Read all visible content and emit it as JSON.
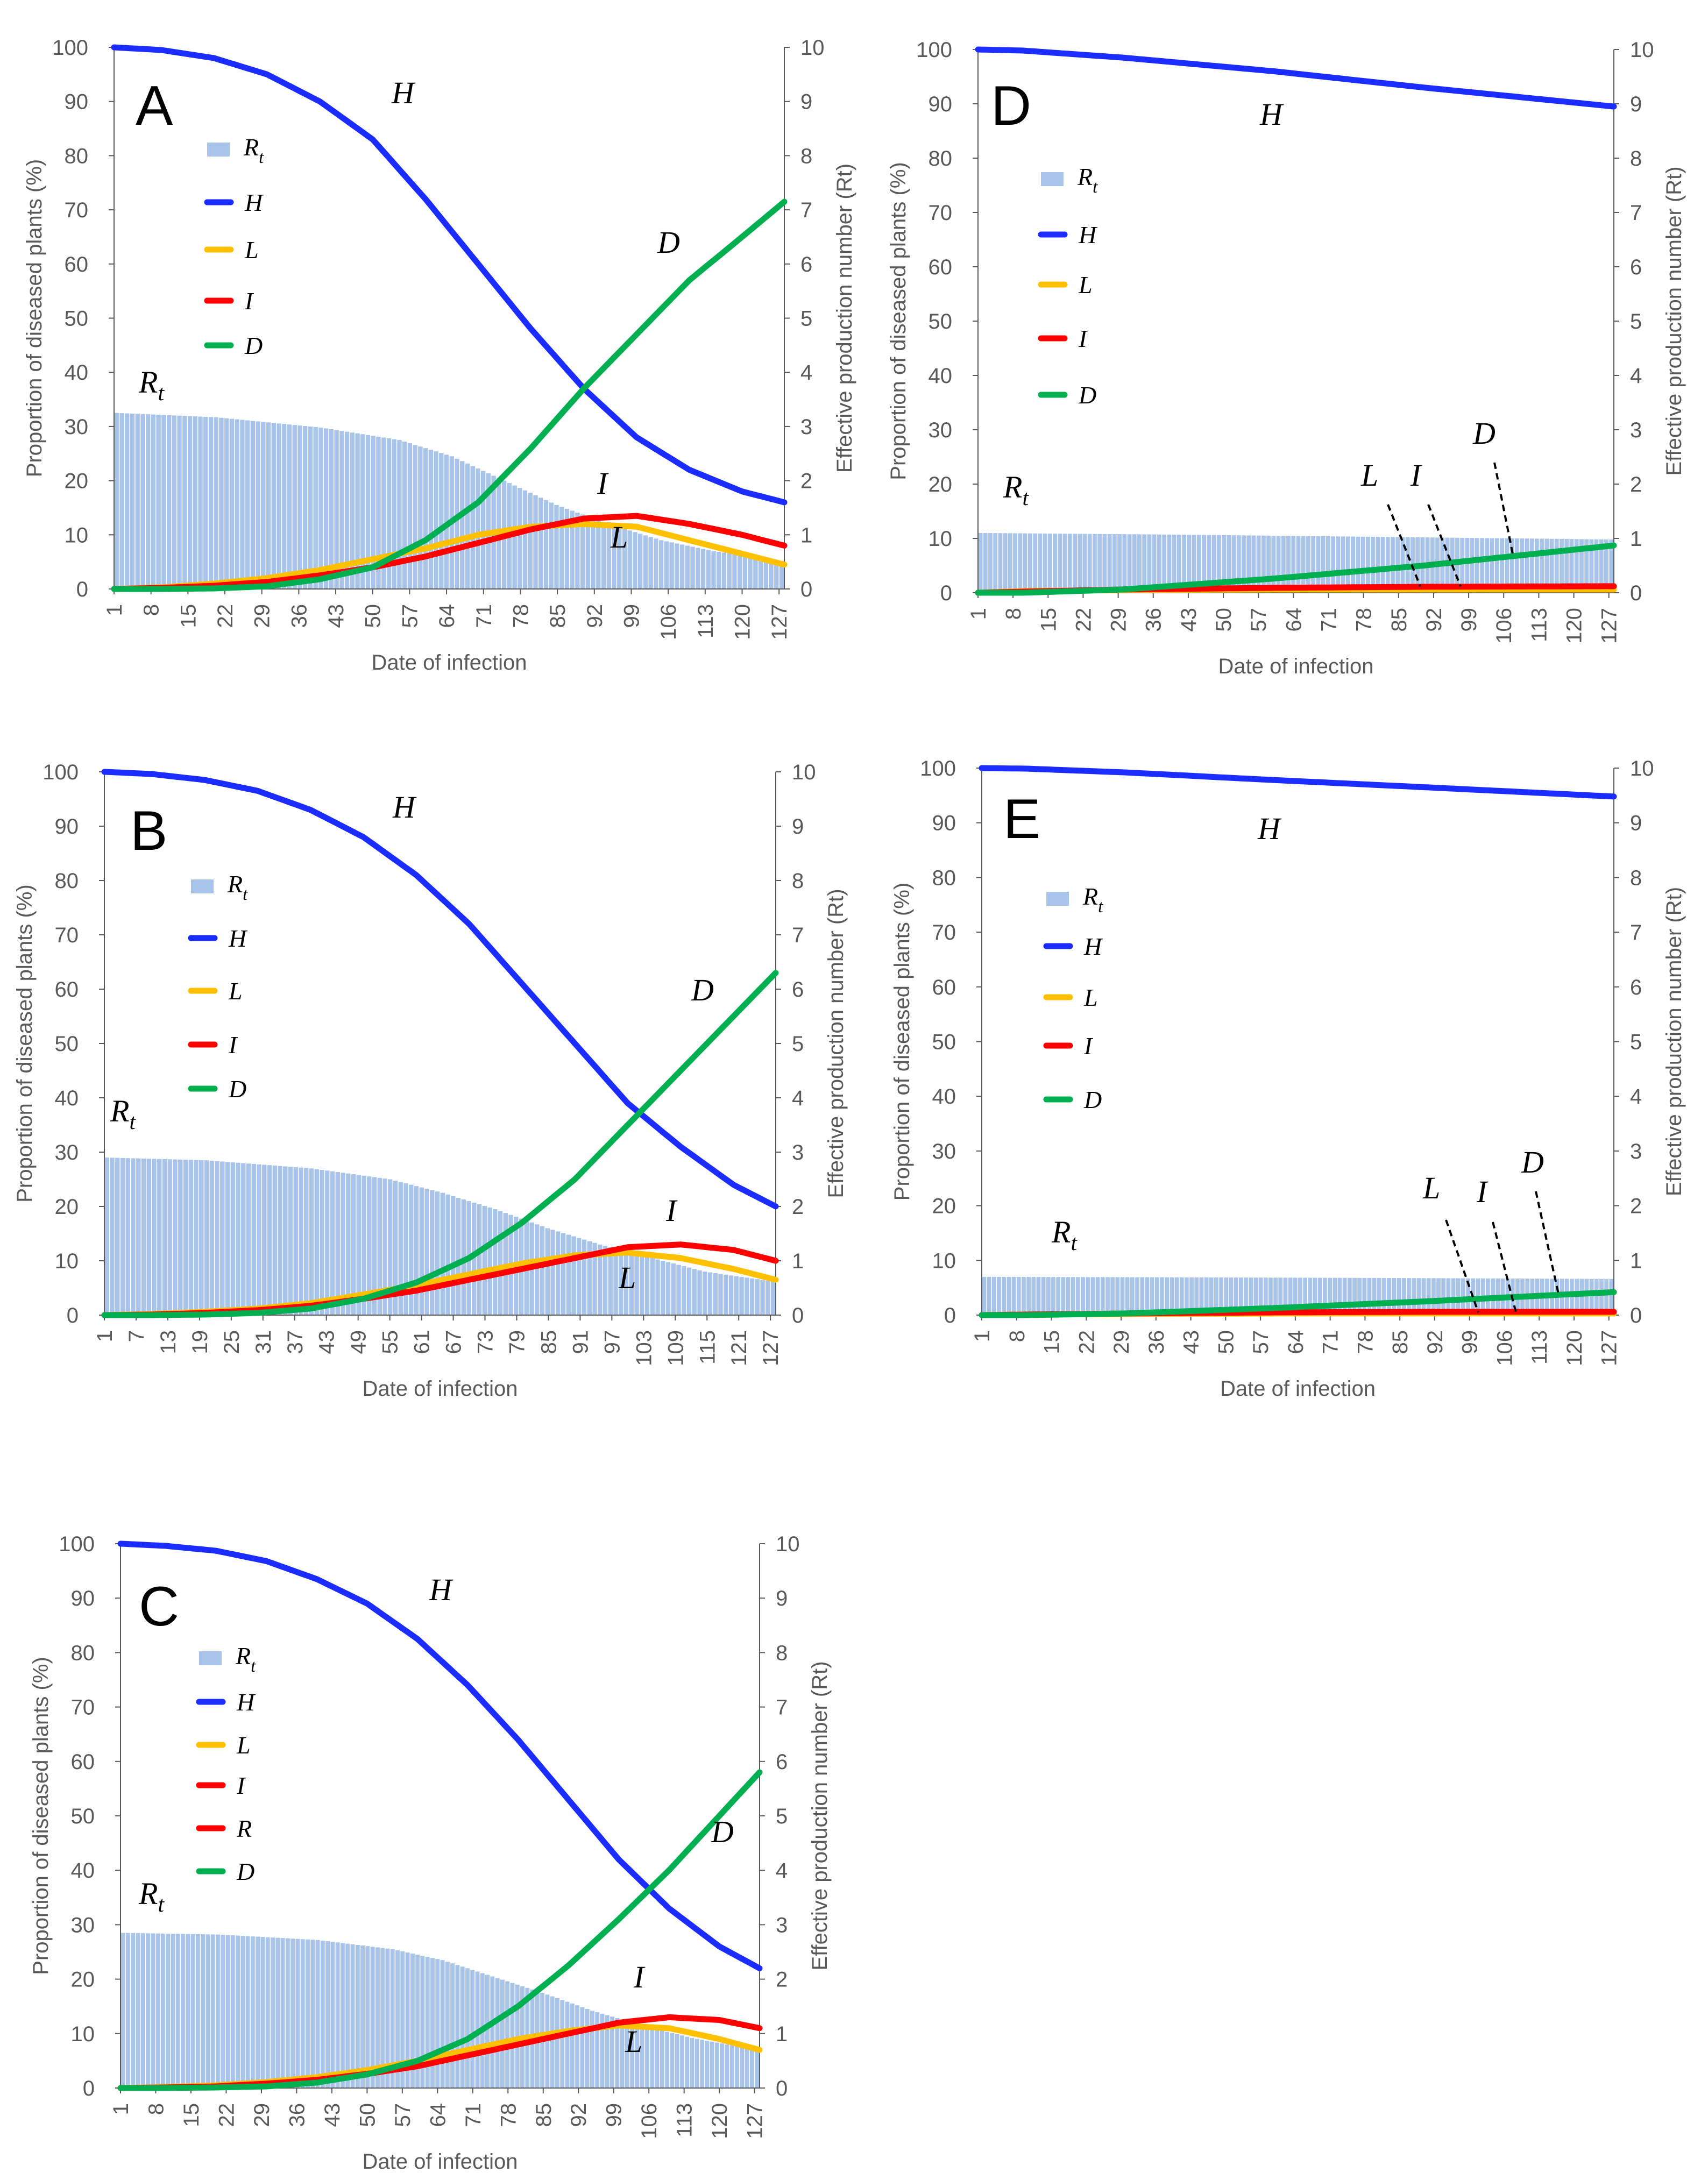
{
  "colors": {
    "H": "#1a2cff",
    "L": "#ffc000",
    "I": "#ff0000",
    "R": "#ff0000",
    "D": "#00b050",
    "Rt": "#a9c4ea",
    "axis": "#595959"
  },
  "chart_data": [
    {
      "panel": "A",
      "type": "line",
      "xlabel": "Date of infection",
      "ylabel": "Proportion of diseased plants (%)",
      "y2label": "Effective production number (Rt)",
      "ylim": [
        0,
        100
      ],
      "y2lim": [
        0,
        10
      ],
      "yticks": [
        0,
        10,
        20,
        30,
        40,
        50,
        60,
        70,
        80,
        90,
        100
      ],
      "y2ticks": [
        0,
        1,
        2,
        3,
        4,
        5,
        6,
        7,
        8,
        9,
        10
      ],
      "xlim": [
        1,
        128
      ],
      "xticks": [
        "1",
        "8",
        "15",
        "22",
        "29",
        "36",
        "43",
        "50",
        "57",
        "64",
        "71",
        "78",
        "85",
        "92",
        "99",
        "106",
        "113",
        "120",
        "127"
      ],
      "legend": [
        {
          "key": "Rt",
          "label": "R",
          "sub": "t"
        },
        {
          "key": "H",
          "label": "H"
        },
        {
          "key": "L",
          "label": "L"
        },
        {
          "key": "I",
          "label": "I"
        },
        {
          "key": "D",
          "label": "D"
        }
      ],
      "annotations": [
        {
          "text": "R",
          "sub": "t"
        },
        {
          "text": "H"
        },
        {
          "text": "D"
        },
        {
          "text": "I"
        },
        {
          "text": "L"
        }
      ],
      "rt_series": {
        "x": [
          1,
          20,
          40,
          55,
          65,
          75,
          85,
          95,
          105,
          115,
          128
        ],
        "y": [
          3.25,
          3.17,
          2.98,
          2.75,
          2.45,
          2.0,
          1.55,
          1.2,
          0.9,
          0.7,
          0.52
        ]
      },
      "series": [
        {
          "name": "H",
          "x": [
            1,
            10,
            20,
            30,
            40,
            50,
            60,
            70,
            80,
            90,
            100,
            110,
            120,
            128
          ],
          "y": [
            100,
            99.5,
            98,
            95,
            90,
            83,
            72,
            60,
            48,
            37,
            28,
            22,
            18,
            16
          ]
        },
        {
          "name": "L",
          "x": [
            1,
            10,
            20,
            30,
            40,
            50,
            60,
            70,
            80,
            90,
            100,
            110,
            120,
            128
          ],
          "y": [
            0,
            0.3,
            1,
            2,
            3.5,
            5.5,
            7.5,
            10,
            11.5,
            12,
            11.5,
            9,
            6.5,
            4.5
          ]
        },
        {
          "name": "I",
          "x": [
            1,
            10,
            20,
            30,
            40,
            50,
            60,
            70,
            80,
            90,
            100,
            110,
            120,
            128
          ],
          "y": [
            0,
            0.2,
            0.6,
            1.3,
            2.5,
            4,
            6,
            8.5,
            11,
            13,
            13.5,
            12,
            10,
            8
          ]
        },
        {
          "name": "D",
          "x": [
            1,
            10,
            20,
            30,
            40,
            50,
            60,
            70,
            80,
            90,
            100,
            110,
            120,
            128
          ],
          "y": [
            0,
            0,
            0.1,
            0.5,
            1.8,
            4,
            9,
            16,
            26,
            37,
            47,
            57,
            65,
            71.5
          ]
        }
      ]
    },
    {
      "panel": "B",
      "type": "line",
      "xlabel": "Date of infection",
      "ylabel": "Proportion of diseased plants (%)",
      "y2label": "Effective production number (Rt)",
      "ylim": [
        0,
        100
      ],
      "y2lim": [
        0,
        10
      ],
      "yticks": [
        0,
        10,
        20,
        30,
        40,
        50,
        60,
        70,
        80,
        90,
        100
      ],
      "y2ticks": [
        0,
        1,
        2,
        3,
        4,
        5,
        6,
        7,
        8,
        9,
        10
      ],
      "xlim": [
        1,
        128
      ],
      "xticks": [
        "1",
        "7",
        "13",
        "19",
        "25",
        "31",
        "37",
        "43",
        "49",
        "55",
        "61",
        "67",
        "73",
        "79",
        "85",
        "91",
        "97",
        "103",
        "109",
        "115",
        "121",
        "127"
      ],
      "legend": [
        {
          "key": "Rt",
          "label": "R",
          "sub": "t"
        },
        {
          "key": "H",
          "label": "H"
        },
        {
          "key": "L",
          "label": "L"
        },
        {
          "key": "I",
          "label": "I"
        },
        {
          "key": "D",
          "label": "D"
        }
      ],
      "annotations": [
        {
          "text": "R",
          "sub": "t"
        },
        {
          "text": "H"
        },
        {
          "text": "D"
        },
        {
          "text": "I"
        },
        {
          "text": "L"
        }
      ],
      "rt_series": {
        "x": [
          1,
          20,
          40,
          55,
          65,
          75,
          85,
          95,
          105,
          115,
          128
        ],
        "y": [
          2.9,
          2.85,
          2.7,
          2.5,
          2.25,
          1.95,
          1.6,
          1.3,
          1.05,
          0.8,
          0.62
        ]
      },
      "series": [
        {
          "name": "H",
          "x": [
            1,
            10,
            20,
            30,
            40,
            50,
            60,
            70,
            80,
            90,
            100,
            110,
            120,
            128
          ],
          "y": [
            100,
            99.6,
            98.5,
            96.5,
            93,
            88,
            81,
            72,
            61,
            50,
            39,
            31,
            24,
            20
          ]
        },
        {
          "name": "L",
          "x": [
            1,
            10,
            20,
            30,
            40,
            50,
            60,
            70,
            80,
            90,
            100,
            110,
            120,
            128
          ],
          "y": [
            0,
            0.2,
            0.6,
            1.2,
            2.2,
            3.8,
            5.5,
            7.5,
            9.5,
            11,
            11.5,
            10.5,
            8.5,
            6.5
          ]
        },
        {
          "name": "I",
          "x": [
            1,
            10,
            20,
            30,
            40,
            50,
            60,
            70,
            80,
            90,
            100,
            110,
            120,
            128
          ],
          "y": [
            0,
            0.1,
            0.4,
            0.9,
            1.7,
            3,
            4.5,
            6.5,
            8.5,
            10.5,
            12.5,
            13,
            12,
            10
          ]
        },
        {
          "name": "D",
          "x": [
            1,
            10,
            20,
            30,
            40,
            50,
            60,
            70,
            80,
            90,
            100,
            110,
            120,
            128
          ],
          "y": [
            0,
            0,
            0.1,
            0.4,
            1.2,
            3,
            6,
            10.5,
            17,
            25,
            35,
            45,
            55,
            63
          ]
        }
      ]
    },
    {
      "panel": "C",
      "type": "line",
      "xlabel": "Date of infection",
      "ylabel": "Proportion of diseased plants (%)",
      "y2label": "Effective production number (Rt)",
      "ylim": [
        0,
        100
      ],
      "y2lim": [
        0,
        10
      ],
      "yticks": [
        0,
        10,
        20,
        30,
        40,
        50,
        60,
        70,
        80,
        90,
        100
      ],
      "y2ticks": [
        0,
        1,
        2,
        3,
        4,
        5,
        6,
        7,
        8,
        9,
        10
      ],
      "xlim": [
        1,
        128
      ],
      "xticks": [
        "1",
        "8",
        "15",
        "22",
        "29",
        "36",
        "43",
        "50",
        "57",
        "64",
        "71",
        "78",
        "85",
        "92",
        "99",
        "106",
        "113",
        "120",
        "127"
      ],
      "legend": [
        {
          "key": "Rt",
          "label": "R",
          "sub": "t"
        },
        {
          "key": "H",
          "label": "H"
        },
        {
          "key": "L",
          "label": "L"
        },
        {
          "key": "I",
          "label": "I"
        },
        {
          "key": "R",
          "label": "R"
        },
        {
          "key": "D",
          "label": "D"
        }
      ],
      "annotations": [
        {
          "text": "R",
          "sub": "t"
        },
        {
          "text": "H"
        },
        {
          "text": "D"
        },
        {
          "text": "I"
        },
        {
          "text": "L"
        }
      ],
      "rt_series": {
        "x": [
          1,
          20,
          40,
          55,
          65,
          75,
          85,
          95,
          105,
          115,
          128
        ],
        "y": [
          2.85,
          2.82,
          2.72,
          2.55,
          2.35,
          2.05,
          1.75,
          1.42,
          1.15,
          0.92,
          0.7
        ]
      },
      "series": [
        {
          "name": "H",
          "x": [
            1,
            10,
            20,
            30,
            40,
            50,
            60,
            70,
            80,
            90,
            100,
            110,
            120,
            128
          ],
          "y": [
            100,
            99.6,
            98.7,
            96.8,
            93.5,
            89,
            82.5,
            74,
            64,
            53,
            42,
            33,
            26,
            22
          ]
        },
        {
          "name": "L",
          "x": [
            1,
            10,
            20,
            30,
            40,
            50,
            60,
            70,
            80,
            90,
            100,
            110,
            120,
            128
          ],
          "y": [
            0,
            0.2,
            0.5,
            1.1,
            2,
            3.3,
            5,
            7,
            9,
            10.5,
            11.5,
            11,
            9,
            7
          ]
        },
        {
          "name": "I",
          "x": [
            1,
            10,
            20,
            30,
            40,
            50,
            60,
            70,
            80,
            90,
            100,
            110,
            120,
            128
          ],
          "y": [
            0,
            0.1,
            0.3,
            0.8,
            1.5,
            2.6,
            4,
            6,
            8,
            10,
            12,
            13,
            12.5,
            11
          ]
        },
        {
          "name": "D",
          "x": [
            1,
            10,
            20,
            30,
            40,
            50,
            60,
            70,
            80,
            90,
            100,
            110,
            120,
            128
          ],
          "y": [
            0,
            0,
            0.1,
            0.3,
            1,
            2.5,
            5,
            9,
            15,
            22.5,
            31,
            40,
            50,
            58
          ]
        }
      ]
    },
    {
      "panel": "D",
      "type": "line",
      "xlabel": "Date of infection",
      "ylabel": "Proportion of diseased plants (%)",
      "y2label": "Effective production number (Rt)",
      "ylim": [
        0,
        100
      ],
      "y2lim": [
        0,
        10
      ],
      "yticks": [
        0,
        10,
        20,
        30,
        40,
        50,
        60,
        70,
        80,
        90,
        100
      ],
      "y2ticks": [
        0,
        1,
        2,
        3,
        4,
        5,
        6,
        7,
        8,
        9,
        10
      ],
      "xlim": [
        1,
        128
      ],
      "xticks": [
        "1",
        "8",
        "15",
        "22",
        "29",
        "36",
        "43",
        "50",
        "57",
        "64",
        "71",
        "78",
        "85",
        "92",
        "99",
        "106",
        "113",
        "120",
        "127"
      ],
      "legend": [
        {
          "key": "Rt",
          "label": "R",
          "sub": "t"
        },
        {
          "key": "H",
          "label": "H"
        },
        {
          "key": "L",
          "label": "L"
        },
        {
          "key": "I",
          "label": "I"
        },
        {
          "key": "D",
          "label": "D"
        }
      ],
      "annotations": [
        {
          "text": "R",
          "sub": "t"
        },
        {
          "text": "H"
        },
        {
          "text": "L"
        },
        {
          "text": "I"
        },
        {
          "text": "D"
        }
      ],
      "rt_series": {
        "x": [
          1,
          40,
          80,
          128
        ],
        "y": [
          1.1,
          1.07,
          1.03,
          0.98
        ]
      },
      "series": [
        {
          "name": "H",
          "x": [
            1,
            10,
            30,
            60,
            90,
            128
          ],
          "y": [
            100,
            99.8,
            98.5,
            96,
            93,
            89.5
          ]
        },
        {
          "name": "L",
          "x": [
            1,
            10,
            30,
            60,
            90,
            128
          ],
          "y": [
            0,
            0.3,
            0.5,
            0.6,
            0.6,
            0.6
          ]
        },
        {
          "name": "I",
          "x": [
            1,
            10,
            30,
            60,
            90,
            128
          ],
          "y": [
            0,
            0.2,
            0.6,
            0.9,
            1.1,
            1.2
          ]
        },
        {
          "name": "D",
          "x": [
            1,
            10,
            30,
            60,
            90,
            128
          ],
          "y": [
            0,
            0,
            0.6,
            2.6,
            5,
            8.7
          ]
        }
      ]
    },
    {
      "panel": "E",
      "type": "line",
      "xlabel": "Date of infection",
      "ylabel": "Proportion of diseased plants (%)",
      "y2label": "Effective production number (Rt)",
      "ylim": [
        0,
        100
      ],
      "y2lim": [
        0,
        10
      ],
      "yticks": [
        0,
        10,
        20,
        30,
        40,
        50,
        60,
        70,
        80,
        90,
        100
      ],
      "y2ticks": [
        0,
        1,
        2,
        3,
        4,
        5,
        6,
        7,
        8,
        9,
        10
      ],
      "xlim": [
        1,
        128
      ],
      "xticks": [
        "1",
        "8",
        "15",
        "22",
        "29",
        "36",
        "43",
        "50",
        "57",
        "64",
        "71",
        "78",
        "85",
        "92",
        "99",
        "106",
        "113",
        "120",
        "127"
      ],
      "legend": [
        {
          "key": "Rt",
          "label": "R",
          "sub": "t"
        },
        {
          "key": "H",
          "label": "H"
        },
        {
          "key": "L",
          "label": "L"
        },
        {
          "key": "I",
          "label": "I"
        },
        {
          "key": "D",
          "label": "D"
        }
      ],
      "annotations": [
        {
          "text": "R",
          "sub": "t"
        },
        {
          "text": "H"
        },
        {
          "text": "L"
        },
        {
          "text": "I"
        },
        {
          "text": "D"
        }
      ],
      "rt_series": {
        "x": [
          1,
          40,
          80,
          128
        ],
        "y": [
          0.7,
          0.69,
          0.68,
          0.66
        ]
      },
      "series": [
        {
          "name": "H",
          "x": [
            1,
            10,
            30,
            60,
            90,
            128
          ],
          "y": [
            100,
            99.9,
            99.2,
            97.8,
            96.5,
            94.8
          ]
        },
        {
          "name": "L",
          "x": [
            1,
            10,
            30,
            60,
            90,
            128
          ],
          "y": [
            0,
            0.1,
            0.2,
            0.3,
            0.3,
            0.3
          ]
        },
        {
          "name": "I",
          "x": [
            1,
            10,
            30,
            60,
            90,
            128
          ],
          "y": [
            0,
            0.1,
            0.3,
            0.5,
            0.6,
            0.6
          ]
        },
        {
          "name": "D",
          "x": [
            1,
            10,
            30,
            60,
            90,
            128
          ],
          "y": [
            0,
            0,
            0.3,
            1.3,
            2.5,
            4.2
          ]
        }
      ]
    }
  ]
}
